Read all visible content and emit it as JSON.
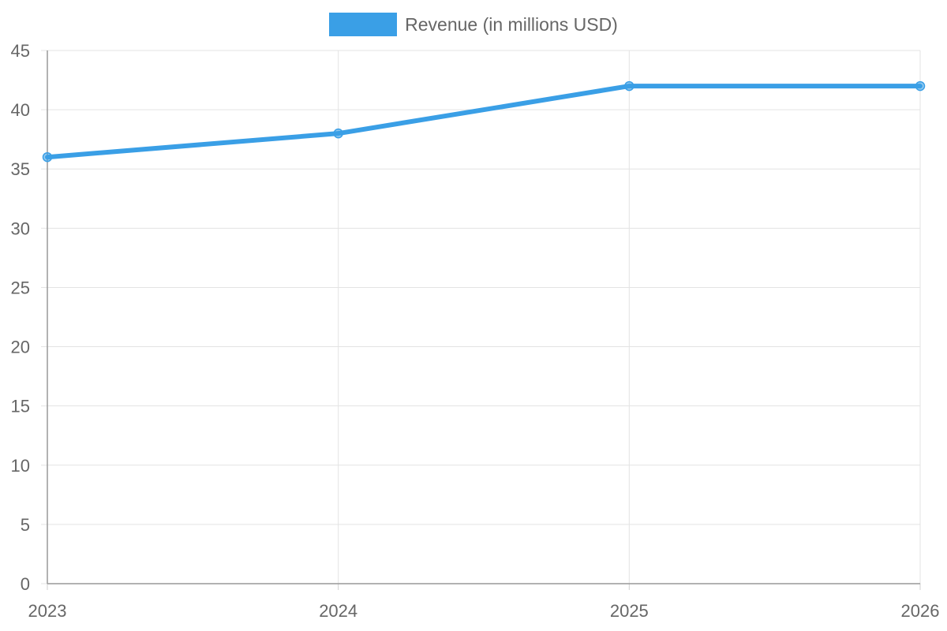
{
  "chart_data": {
    "type": "line",
    "title": "",
    "xlabel": "",
    "ylabel": "",
    "categories": [
      "2023",
      "2024",
      "2025",
      "2026"
    ],
    "series": [
      {
        "name": "Revenue (in millions USD)",
        "values": [
          36,
          38,
          42,
          42
        ],
        "color": "#3a9fe6"
      }
    ],
    "ylim": [
      0,
      45
    ],
    "yticks": [
      "0",
      "5",
      "10",
      "15",
      "20",
      "25",
      "30",
      "35",
      "40",
      "45"
    ],
    "grid": true,
    "legend_position": "top-center"
  }
}
